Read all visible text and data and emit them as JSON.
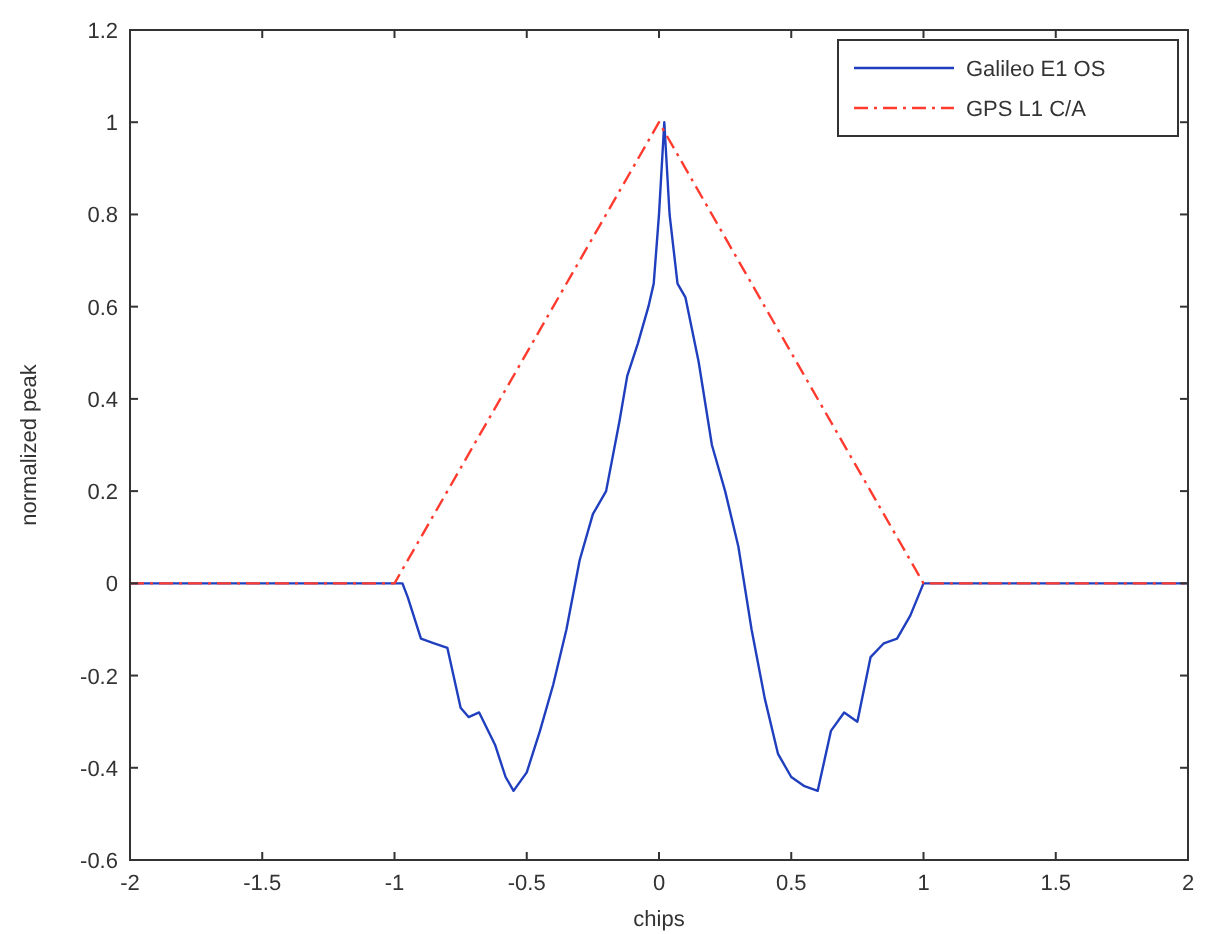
{
  "chart_data": {
    "type": "line",
    "xlabel": "chips",
    "ylabel": "normalized peak",
    "xlim": [
      -2,
      2
    ],
    "ylim": [
      -0.6,
      1.2
    ],
    "xticks": [
      {
        "value": -2,
        "label": "-2"
      },
      {
        "value": -1.5,
        "label": "-1.5"
      },
      {
        "value": -1,
        "label": "-1"
      },
      {
        "value": -0.5,
        "label": "-0.5"
      },
      0,
      0.5,
      1,
      1.5,
      2
    ],
    "yticks": [
      {
        "value": -0.6,
        "label": "-0.6"
      },
      {
        "value": -0.4,
        "label": "-0.4"
      },
      {
        "value": -0.2,
        "label": "-0.2"
      },
      0,
      0.2,
      0.4,
      0.6,
      0.8,
      1,
      1.2
    ],
    "legend": "top right",
    "grid": false,
    "series": [
      {
        "name": "Galileo E1 OS",
        "color": "#1f3fbf",
        "line_style": "solid",
        "x": [
          -2,
          -0.97,
          -0.95,
          -0.9,
          -0.85,
          -0.8,
          -0.75,
          -0.72,
          -0.68,
          -0.62,
          -0.58,
          -0.55,
          -0.5,
          -0.45,
          -0.4,
          -0.35,
          -0.3,
          -0.25,
          -0.2,
          -0.15,
          -0.12,
          -0.08,
          -0.04,
          -0.02,
          0,
          0.02,
          0.04,
          0.07,
          0.1,
          0.15,
          0.2,
          0.25,
          0.3,
          0.35,
          0.4,
          0.45,
          0.5,
          0.55,
          0.6,
          0.65,
          0.7,
          0.75,
          0.8,
          0.85,
          0.9,
          0.95,
          1,
          2
        ],
        "values": [
          0,
          0,
          -0.03,
          -0.12,
          -0.13,
          -0.14,
          -0.27,
          -0.29,
          -0.28,
          -0.35,
          -0.42,
          -0.45,
          -0.41,
          -0.32,
          -0.22,
          -0.1,
          0.05,
          0.15,
          0.2,
          0.35,
          0.45,
          0.52,
          0.6,
          0.65,
          0.8,
          1,
          0.8,
          0.65,
          0.62,
          0.48,
          0.3,
          0.2,
          0.08,
          -0.1,
          -0.25,
          -0.37,
          -0.42,
          -0.44,
          -0.45,
          -0.32,
          -0.28,
          -0.3,
          -0.16,
          -0.13,
          -0.12,
          -0.07,
          0,
          0
        ]
      },
      {
        "name": "GPS L1 C/A",
        "color": "#ff3b2f",
        "line_style": "dashdot",
        "x": [
          -2,
          -1,
          0,
          1,
          2
        ],
        "values": [
          0,
          0,
          1,
          0,
          0
        ]
      }
    ]
  }
}
